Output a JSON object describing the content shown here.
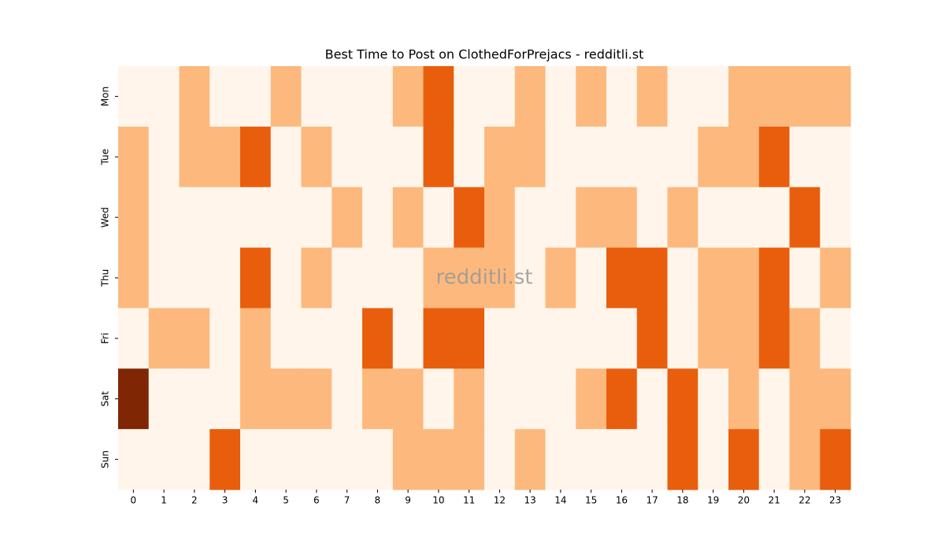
{
  "chart_data": {
    "type": "heatmap",
    "title": "Best Time to Post on ClothedForPrejacs - redditli.st",
    "watermark": "redditli.st",
    "x": [
      0,
      1,
      2,
      3,
      4,
      5,
      6,
      7,
      8,
      9,
      10,
      11,
      12,
      13,
      14,
      15,
      16,
      17,
      18,
      19,
      20,
      21,
      22,
      23
    ],
    "y": [
      "Mon",
      "Tue",
      "Wed",
      "Thu",
      "Fri",
      "Sat",
      "Sun"
    ],
    "z": [
      [
        0,
        0,
        1,
        0,
        0,
        1,
        0,
        0,
        0,
        1,
        2,
        0,
        0,
        1,
        0,
        1,
        0,
        1,
        0,
        0,
        1,
        1,
        1,
        1
      ],
      [
        1,
        0,
        1,
        1,
        2,
        0,
        1,
        0,
        0,
        0,
        2,
        0,
        1,
        1,
        0,
        0,
        0,
        0,
        0,
        1,
        1,
        2,
        0,
        0
      ],
      [
        1,
        0,
        0,
        0,
        0,
        0,
        0,
        1,
        0,
        1,
        0,
        2,
        1,
        0,
        0,
        1,
        1,
        0,
        1,
        0,
        0,
        0,
        2,
        0
      ],
      [
        1,
        0,
        0,
        0,
        2,
        0,
        1,
        0,
        0,
        0,
        1,
        1,
        1,
        0,
        1,
        0,
        2,
        2,
        0,
        1,
        1,
        2,
        0,
        1
      ],
      [
        0,
        1,
        1,
        0,
        1,
        0,
        0,
        0,
        2,
        0,
        2,
        2,
        0,
        0,
        0,
        0,
        0,
        2,
        0,
        1,
        1,
        2,
        1,
        0
      ],
      [
        3,
        0,
        0,
        0,
        1,
        1,
        1,
        0,
        1,
        1,
        0,
        1,
        0,
        0,
        0,
        1,
        2,
        0,
        2,
        0,
        1,
        0,
        1,
        1
      ],
      [
        0,
        0,
        0,
        2,
        0,
        0,
        0,
        0,
        0,
        1,
        1,
        1,
        0,
        1,
        0,
        0,
        0,
        0,
        2,
        0,
        2,
        0,
        1,
        2
      ]
    ],
    "colors": [
      "#fff5eb",
      "#fdb97d",
      "#e95e0d",
      "#7f2704"
    ]
  }
}
